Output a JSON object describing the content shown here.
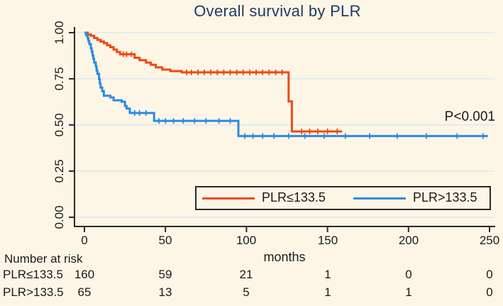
{
  "title": "Overall survival by PLR",
  "p_value_label": "P<0.001",
  "style": {
    "background": "#fdf6e7",
    "gridline": "#dce8f1",
    "axis": "#2b2b2b",
    "title_color": "#1f3a68",
    "red": "#ee4a12",
    "blue": "#2f8ae0"
  },
  "chart_data": {
    "type": "line",
    "subtype": "kaplan-meier-step",
    "title": "Overall survival by PLR",
    "xlabel": "months",
    "ylabel": "",
    "xlim": [
      0,
      250
    ],
    "ylim": [
      0.0,
      1.0
    ],
    "grid": "horizontal",
    "grid_values": [
      0,
      0.25,
      0.5,
      0.75,
      1.0
    ],
    "xtick_months": [
      0,
      50,
      100,
      150,
      200,
      250
    ],
    "xtick_labels": [
      "0",
      "50",
      "100",
      "150",
      "200",
      "250"
    ],
    "ytick_labels_top_to_bottom": [
      "1.00",
      "0.75",
      "0.50",
      "0.25",
      "0.00"
    ],
    "legend_position": "bottom-right-box",
    "annotation": "P<0.001",
    "series": [
      {
        "name": "PLR≤133.5",
        "color": "#ee4a12",
        "end_month": 159,
        "points": [
          [
            0,
            1.0
          ],
          [
            2,
            0.99
          ],
          [
            4,
            0.983
          ],
          [
            6,
            0.971
          ],
          [
            8,
            0.961
          ],
          [
            10,
            0.952
          ],
          [
            12,
            0.943
          ],
          [
            14,
            0.932
          ],
          [
            16,
            0.921
          ],
          [
            18,
            0.908
          ],
          [
            20,
            0.895
          ],
          [
            22,
            0.883
          ],
          [
            31,
            0.864
          ],
          [
            34,
            0.851
          ],
          [
            38,
            0.838
          ],
          [
            41,
            0.826
          ],
          [
            44,
            0.812
          ],
          [
            48,
            0.8
          ],
          [
            53,
            0.792
          ],
          [
            60,
            0.785
          ],
          [
            126,
            0.628
          ],
          [
            128,
            0.465
          ]
        ],
        "censor_marks": [
          [
            24,
            0.883
          ],
          [
            26,
            0.883
          ],
          [
            29,
            0.883
          ],
          [
            63,
            0.785
          ],
          [
            66,
            0.785
          ],
          [
            70,
            0.785
          ],
          [
            74,
            0.785
          ],
          [
            78,
            0.785
          ],
          [
            82,
            0.785
          ],
          [
            86,
            0.785
          ],
          [
            90,
            0.785
          ],
          [
            94,
            0.785
          ],
          [
            98,
            0.785
          ],
          [
            102,
            0.785
          ],
          [
            106,
            0.785
          ],
          [
            110,
            0.785
          ],
          [
            114,
            0.785
          ],
          [
            118,
            0.785
          ],
          [
            122,
            0.785
          ],
          [
            134,
            0.465
          ],
          [
            139,
            0.465
          ],
          [
            144,
            0.465
          ],
          [
            150,
            0.465
          ],
          [
            156,
            0.465
          ]
        ]
      },
      {
        "name": "PLR>133.5",
        "color": "#2f8ae0",
        "end_month": 249,
        "points": [
          [
            0,
            1.0
          ],
          [
            1,
            0.985
          ],
          [
            2,
            0.969
          ],
          [
            2.5,
            0.954
          ],
          [
            3,
            0.938
          ],
          [
            4,
            0.915
          ],
          [
            4.5,
            0.897
          ],
          [
            5,
            0.877
          ],
          [
            5.5,
            0.858
          ],
          [
            6,
            0.838
          ],
          [
            7,
            0.818
          ],
          [
            7.5,
            0.795
          ],
          [
            8,
            0.777
          ],
          [
            9,
            0.748
          ],
          [
            9.5,
            0.724
          ],
          [
            10,
            0.703
          ],
          [
            11,
            0.683
          ],
          [
            12,
            0.658
          ],
          [
            16,
            0.649
          ],
          [
            18,
            0.634
          ],
          [
            23,
            0.626
          ],
          [
            25,
            0.603
          ],
          [
            26,
            0.589
          ],
          [
            28,
            0.565
          ],
          [
            43,
            0.522
          ],
          [
            95,
            0.44
          ]
        ],
        "censor_marks": [
          [
            31,
            0.565
          ],
          [
            34,
            0.565
          ],
          [
            38,
            0.565
          ],
          [
            46,
            0.522
          ],
          [
            50,
            0.522
          ],
          [
            55,
            0.522
          ],
          [
            61,
            0.522
          ],
          [
            68,
            0.522
          ],
          [
            75,
            0.522
          ],
          [
            83,
            0.522
          ],
          [
            90,
            0.522
          ],
          [
            99,
            0.44
          ],
          [
            104,
            0.44
          ],
          [
            110,
            0.44
          ],
          [
            117,
            0.44
          ],
          [
            126,
            0.44
          ],
          [
            136,
            0.44
          ],
          [
            148,
            0.44
          ],
          [
            161,
            0.44
          ],
          [
            176,
            0.44
          ],
          [
            193,
            0.44
          ],
          [
            211,
            0.44
          ],
          [
            230,
            0.44
          ],
          [
            246,
            0.44
          ]
        ]
      }
    ]
  },
  "risk_table": {
    "header": "Number at risk",
    "rows": [
      {
        "label": "PLR≤133.5",
        "values": [
          "160",
          "59",
          "21",
          "1",
          "0",
          "0"
        ]
      },
      {
        "label": "PLR>133.5",
        "values": [
          "65",
          "13",
          "5",
          "1",
          "1",
          "0"
        ]
      }
    ]
  }
}
